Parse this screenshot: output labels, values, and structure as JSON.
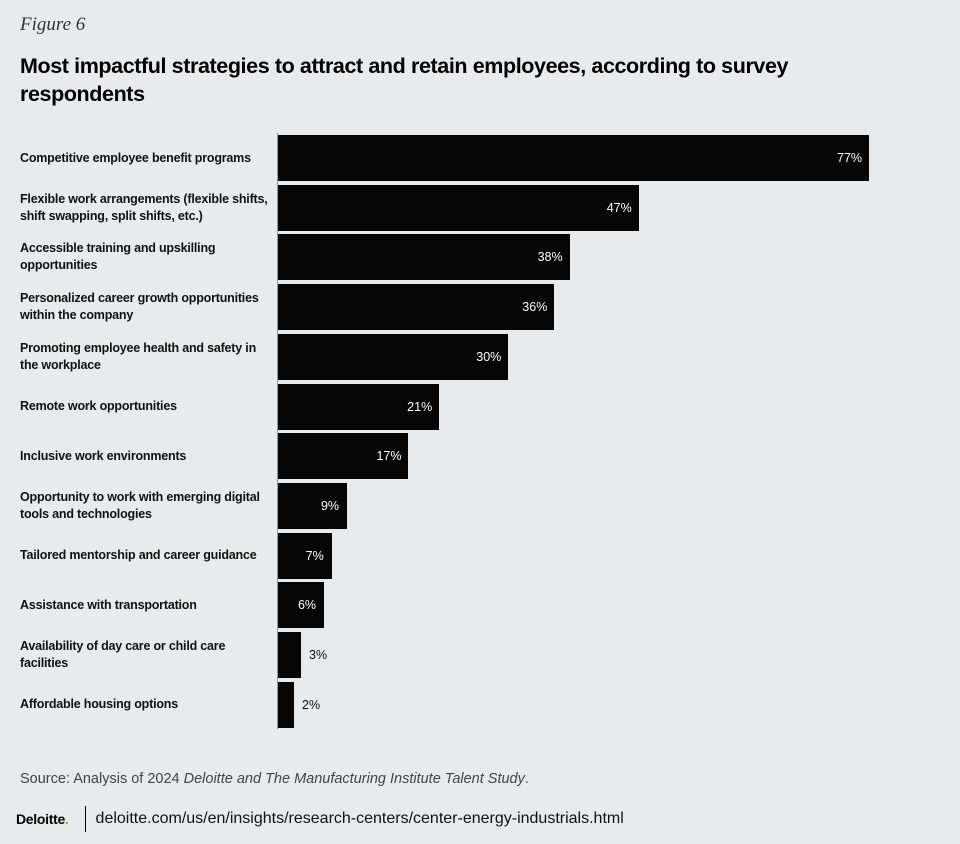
{
  "figure_label": "Figure 6",
  "chart_data": {
    "type": "bar",
    "orientation": "horizontal",
    "title": "Most impactful strategies to attract and retain employees, according to survey respondents",
    "categories": [
      "Competitive employee benefit programs",
      "Flexible work arrangements (flexible shifts, shift swapping, split shifts, etc.)",
      "Accessible training and upskilling opportunities",
      "Personalized career growth opportunities within the company",
      "Promoting employee health and safety in the workplace",
      "Remote work opportunities",
      "Inclusive work environments",
      "Opportunity to work with emerging digital tools and technologies",
      "Tailored mentorship and career guidance",
      "Assistance with transportation",
      "Availability of day care or child care facilities",
      "Affordable housing options"
    ],
    "values": [
      77,
      47,
      38,
      36,
      30,
      21,
      17,
      9,
      7,
      6,
      3,
      2
    ],
    "value_labels": [
      "77%",
      "47%",
      "38%",
      "36%",
      "30%",
      "21%",
      "17%",
      "9%",
      "7%",
      "6%",
      "3%",
      "2%"
    ],
    "unit": "%",
    "bar_color": "#060606",
    "xlim": [
      0,
      77
    ],
    "grid": false,
    "legend": "none"
  },
  "source": {
    "prefix": "Source: Analysis of 2024 ",
    "italic": "Deloitte and The Manufacturing Institute Talent Study",
    "suffix": "."
  },
  "footer": {
    "logo": "Deloitte",
    "logo_dot": ".",
    "url": "deloitte.com/us/en/insights/research-centers/center-energy-industrials.html"
  }
}
